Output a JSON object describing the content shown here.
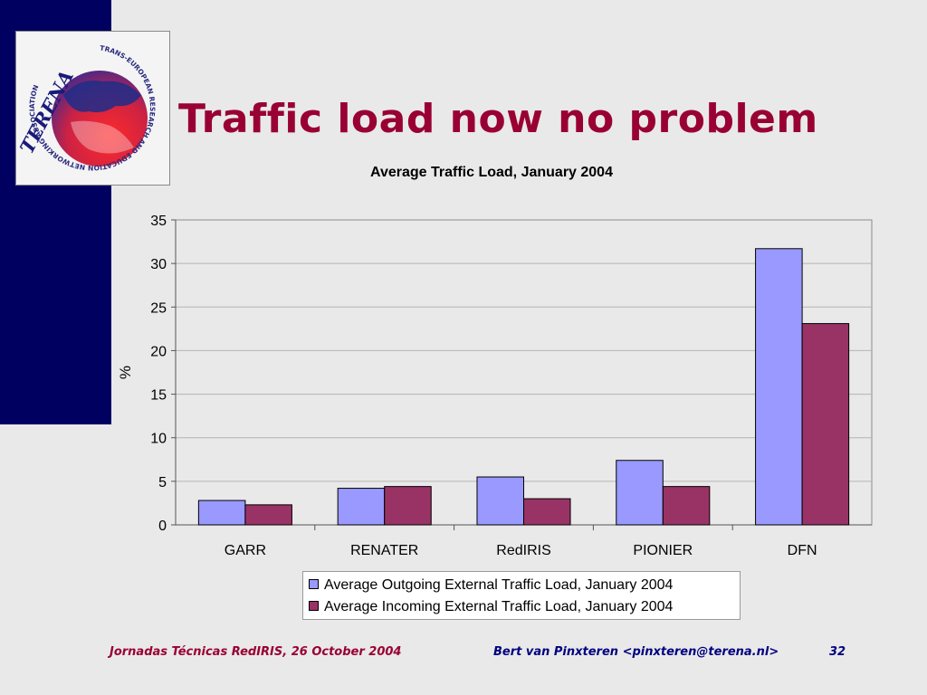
{
  "slide": {
    "title": "Traffic load now no problem",
    "footer_left": "Jornadas Técnicas RedIRIS, 26 October 2004",
    "footer_author": "Bert van Pinxteren <pinxteren@terena.nl>",
    "page_number": "32"
  },
  "logo": {
    "wordmark": "TERENA",
    "ring_text": "TRANS-EUROPEAN RESEARCH AND EDUCATION NETWORKING ASSOCIATION"
  },
  "colors": {
    "sidebar": "#000060",
    "title": "#990033",
    "footer_left": "#990033",
    "footer_right": "#000080",
    "series_outgoing": "#9999ff",
    "series_incoming": "#993366"
  },
  "chart_data": {
    "type": "bar",
    "title": "Average Traffic Load, January 2004",
    "xlabel": "",
    "ylabel": "%",
    "ylim": [
      0,
      35
    ],
    "yticks": [
      0,
      5,
      10,
      15,
      20,
      25,
      30,
      35
    ],
    "grid": true,
    "legend_position": "bottom",
    "categories": [
      "GARR",
      "RENATER",
      "RedIRIS",
      "PIONIER",
      "DFN"
    ],
    "series": [
      {
        "name": "Average Outgoing External Traffic Load, January 2004",
        "color": "#9999ff",
        "values": [
          2.8,
          4.2,
          5.5,
          7.4,
          31.7
        ]
      },
      {
        "name": "Average Incoming External Traffic Load, January 2004",
        "color": "#993366",
        "values": [
          2.3,
          4.4,
          3.0,
          4.4,
          23.1
        ]
      }
    ]
  }
}
